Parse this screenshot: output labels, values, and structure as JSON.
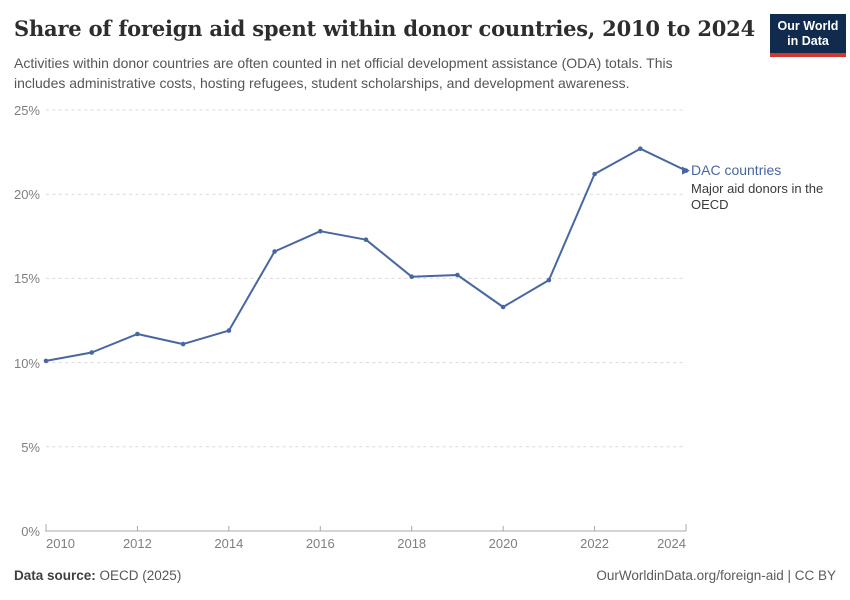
{
  "header": {
    "title": "Share of foreign aid spent within donor countries, 2010 to 2024",
    "subtitle_line1": "Activities within donor countries are often counted in net official development assistance (ODA) totals. This",
    "subtitle_line2": "includes administrative costs, hosting refugees, student scholarships, and development awareness.",
    "logo": {
      "line1": "Our World",
      "line2": "in Data",
      "bg_color": "#112b4f",
      "accent_color": "#d0382f"
    }
  },
  "chart_data": {
    "type": "line",
    "title": "Share of foreign aid spent within donor countries, 2010 to 2024",
    "x": [
      2010,
      2011,
      2012,
      2013,
      2014,
      2015,
      2016,
      2017,
      2018,
      2019,
      2020,
      2021,
      2022,
      2023,
      2024
    ],
    "series": [
      {
        "name": "DAC countries",
        "description": "Major aid donors in the OECD",
        "color": "#4767a3",
        "values": [
          10.1,
          10.6,
          11.7,
          11.1,
          11.9,
          16.6,
          17.8,
          17.3,
          15.1,
          15.2,
          13.3,
          14.9,
          21.2,
          22.7,
          21.4
        ]
      }
    ],
    "xlabel": "",
    "ylabel": "",
    "ylim": [
      0,
      25
    ],
    "ytick_values": [
      0,
      5,
      10,
      15,
      20,
      25
    ],
    "ytick_labels": [
      "0%",
      "5%",
      "10%",
      "15%",
      "20%",
      "25%"
    ],
    "xticks": [
      2010,
      2012,
      2014,
      2016,
      2018,
      2020,
      2022,
      2024
    ],
    "grid": "horizontal-dashed",
    "legend_position": "right-of-line-end",
    "grid_color": "#d9d9d9",
    "axis_color": "#a8a8a8",
    "tick_label_color": "#7f7f7f"
  },
  "footer": {
    "datasource_label": "Data source:",
    "datasource_value": " OECD (2025)",
    "credit": "OurWorldinData.org/foreign-aid | CC BY"
  }
}
